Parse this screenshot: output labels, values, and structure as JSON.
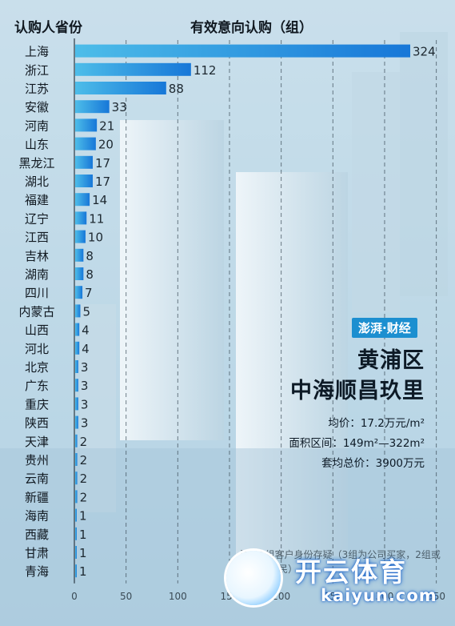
{
  "header": {
    "left": "认购人省份",
    "right": "有效意向认购（组）"
  },
  "colors": {
    "bar_start": "#4dbde9",
    "bar_end": "#1777d8",
    "text": "#101820",
    "brand": "#1c8fd0"
  },
  "chart_data": {
    "type": "bar",
    "orientation": "horizontal",
    "ylabel": "认购人省份",
    "xlabel": "有效意向认购（组）",
    "categories": [
      "上海",
      "浙江",
      "江苏",
      "安徽",
      "河南",
      "山东",
      "黑龙江",
      "湖北",
      "福建",
      "辽宁",
      "江西",
      "吉林",
      "湖南",
      "四川",
      "内蒙古",
      "山西",
      "河北",
      "北京",
      "广东",
      "重庆",
      "陕西",
      "天津",
      "贵州",
      "云南",
      "新疆",
      "海南",
      "西藏",
      "甘肃",
      "青海"
    ],
    "values": [
      324,
      112,
      88,
      33,
      21,
      20,
      17,
      17,
      14,
      11,
      10,
      8,
      8,
      7,
      5,
      4,
      4,
      3,
      3,
      3,
      3,
      2,
      2,
      2,
      2,
      1,
      1,
      1,
      1
    ],
    "xticks": [
      0,
      50,
      100,
      150,
      200,
      250,
      300,
      350
    ],
    "xlim": [
      0,
      350
    ],
    "grid": "vertical dashed"
  },
  "info": {
    "brand": "澎湃·财经",
    "district": "黄浦区",
    "project": "中海顺昌玖里",
    "avg_price": "均价：17.2万元/m²",
    "area_range": "面积区间：149m²—322m²",
    "total_price": "套均总价：3900万元",
    "note": "注：1组客户身份存疑（3组为公司买家，2组或为香港居民）"
  },
  "watermark": {
    "title": "开云体育",
    "subtitle": "kaiyun.com"
  }
}
